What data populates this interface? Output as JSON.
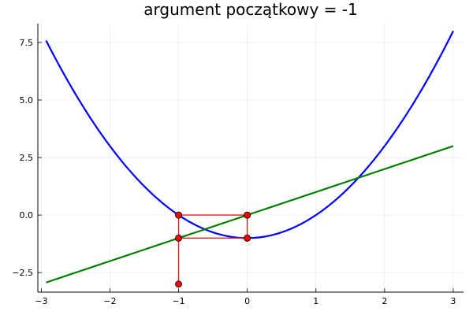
{
  "chart_data": {
    "type": "line",
    "title": "argument początkowy = -1",
    "xlabel": "",
    "ylabel": "",
    "xlim": [
      -3.05,
      3.15
    ],
    "ylim": [
      -3.35,
      8.32
    ],
    "grid": true,
    "legend": "none",
    "x_ticks": [
      -3,
      -2,
      -1,
      0,
      1,
      2,
      3
    ],
    "x_tick_labels": [
      "−3",
      "−2",
      "−1",
      "0",
      "1",
      "2",
      "3"
    ],
    "y_ticks": [
      -2.5,
      0,
      2.5,
      5,
      7.5
    ],
    "y_tick_labels": [
      "−2.5",
      "0.0",
      "2.5",
      "5.0",
      "7.5"
    ],
    "series": [
      {
        "kind": "function",
        "expression": "x^2 - 1",
        "domain": [
          -2.93,
          3.0
        ],
        "color": "#0000ff",
        "x": [
          -2.93,
          -2.5,
          -2.0,
          -1.5,
          -1.0,
          -0.5,
          0.0,
          0.5,
          1.0,
          1.5,
          2.0,
          2.5,
          3.0
        ],
        "y": [
          7.58,
          5.25,
          3.0,
          1.25,
          0.0,
          -0.75,
          -1.0,
          -0.75,
          0.0,
          1.25,
          3.0,
          5.25,
          8.0
        ]
      },
      {
        "kind": "function",
        "expression": "x",
        "domain": [
          -2.93,
          3.0
        ],
        "color": "#008000",
        "x": [
          -2.93,
          3.0
        ],
        "y": [
          -2.93,
          3.0
        ]
      },
      {
        "kind": "iteration-path",
        "color": "#e41a1c",
        "x": [
          -1,
          -1,
          -1,
          0,
          0,
          0,
          0,
          -1,
          -1
        ],
        "y": [
          -3,
          -1,
          0,
          0,
          -1,
          0,
          -1,
          -1,
          0
        ]
      }
    ],
    "points": [
      {
        "x": -1,
        "y": -3,
        "color": "#ff0000"
      },
      {
        "x": -1,
        "y": -1,
        "color": "#000000"
      },
      {
        "x": -1,
        "y": 0,
        "color": "#000000"
      },
      {
        "x": 0,
        "y": 0,
        "color": "#000000"
      },
      {
        "x": 0,
        "y": -1,
        "color": "#000000"
      },
      {
        "x": -1,
        "y": 0,
        "color": "#ff0000"
      },
      {
        "x": 0,
        "y": 0,
        "color": "#ff0000"
      },
      {
        "x": 0,
        "y": -1,
        "color": "#ff0000"
      },
      {
        "x": -1,
        "y": -1,
        "color": "#ff0000"
      }
    ]
  }
}
